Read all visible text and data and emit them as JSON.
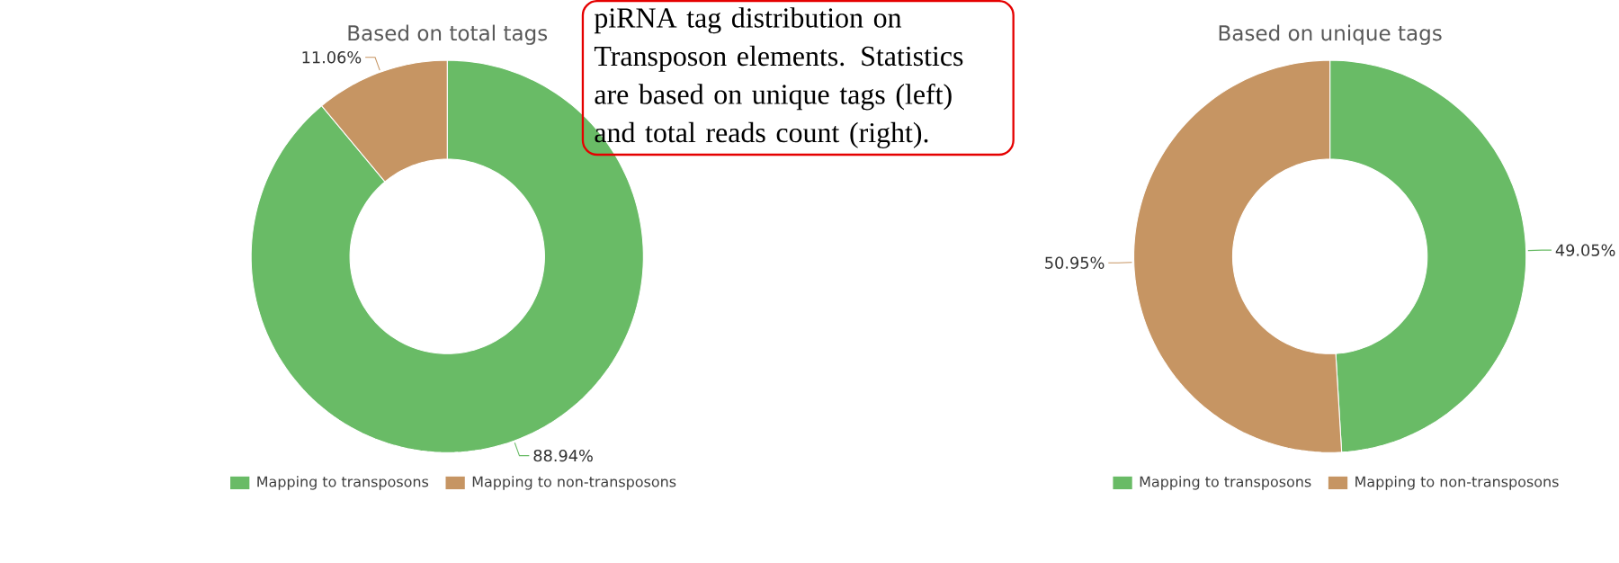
{
  "chart_data": [
    {
      "type": "donut",
      "title": "Based on total tags",
      "categories": [
        "Mapping to transposons",
        "Mapping to non-transposons"
      ],
      "values": [
        88.94,
        11.06
      ],
      "value_labels": [
        "88.94%",
        "11.06%"
      ],
      "colors": [
        "#69bb66",
        "#c69563"
      ],
      "legend": "bottom",
      "annotations": [
        "piRNA tag distribution on Transposon elements. Statistics are based on unique tags (left) and total reads count (right)."
      ]
    },
    {
      "type": "donut",
      "title": "Based on unique tags",
      "categories": [
        "Mapping to transposons",
        "Mapping to non-transposons"
      ],
      "values": [
        49.05,
        50.95
      ],
      "value_labels": [
        "49.05%",
        "50.95%"
      ],
      "colors": [
        "#69bb66",
        "#c69563"
      ],
      "legend": "bottom"
    }
  ]
}
